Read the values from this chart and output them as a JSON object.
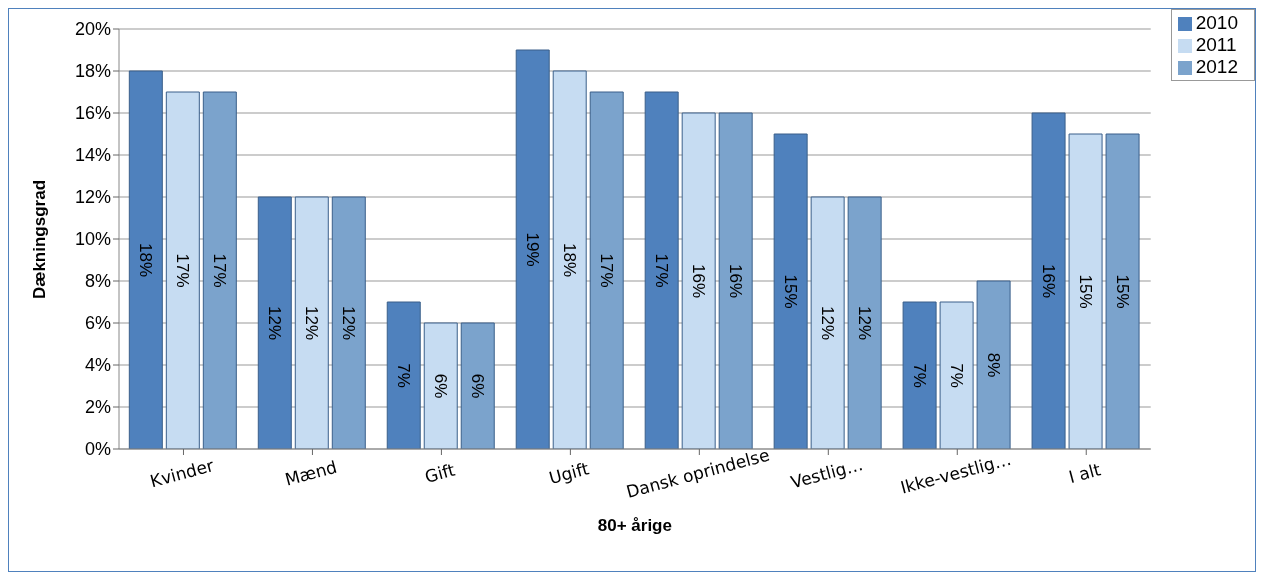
{
  "chart_data": {
    "type": "bar",
    "xlabel": "80+ årige",
    "ylabel": "Dækningsgrad",
    "categories": [
      "Kvinder",
      "Mænd",
      "Gift",
      "Ugift",
      "Dansk oprindelse",
      "Vestlig…",
      "Ikke-vestlig…",
      "I alt"
    ],
    "series": [
      {
        "name": "2010",
        "color": "#4f81bd",
        "values": [
          18,
          12,
          7,
          19,
          17,
          15,
          7,
          16
        ],
        "value_labels": [
          "18%",
          "12%",
          "7%",
          "19%",
          "17%",
          "15%",
          "7%",
          "16%"
        ]
      },
      {
        "name": "2011",
        "color": "#c6dcf2",
        "values": [
          17,
          12,
          6,
          18,
          16,
          12,
          7,
          15
        ],
        "value_labels": [
          "17%",
          "12%",
          "6%",
          "18%",
          "16%",
          "12%",
          "7%",
          "15%"
        ]
      },
      {
        "name": "2012",
        "color": "#7ba3cc",
        "values": [
          17,
          12,
          6,
          17,
          16,
          12,
          8,
          15
        ],
        "value_labels": [
          "17%",
          "12%",
          "6%",
          "17%",
          "16%",
          "12%",
          "8%",
          "15%"
        ]
      }
    ],
    "ylim": [
      0,
      20
    ],
    "yticks": [
      {
        "value": 0,
        "label": "0%"
      },
      {
        "value": 2,
        "label": "2%"
      },
      {
        "value": 4,
        "label": "4%"
      },
      {
        "value": 6,
        "label": "6%"
      },
      {
        "value": 8,
        "label": "8%"
      },
      {
        "value": 10,
        "label": "10%"
      },
      {
        "value": 12,
        "label": "12%"
      },
      {
        "value": 14,
        "label": "14%"
      },
      {
        "value": 16,
        "label": "16%"
      },
      {
        "value": 18,
        "label": "18%"
      },
      {
        "value": 20,
        "label": "20%"
      }
    ],
    "grid": "y",
    "legend": "top right"
  }
}
